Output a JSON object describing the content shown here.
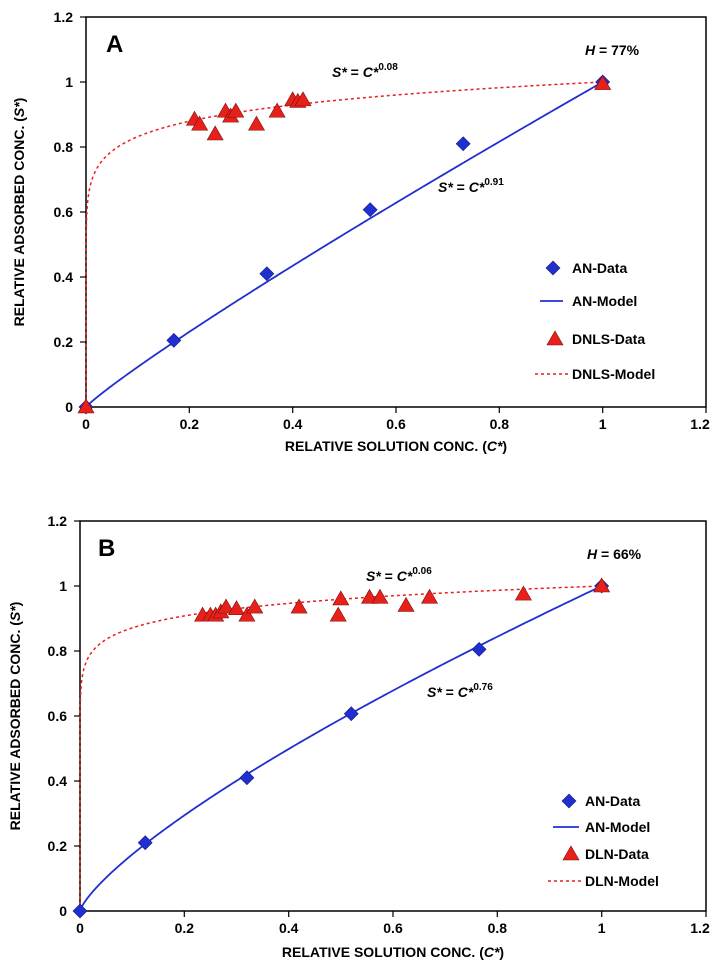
{
  "chart_data": [
    {
      "type": "scatter",
      "panel_label": "A",
      "humidity_label": "H",
      "humidity_value": " = 77%",
      "xlabel": "RELATIVE SOLUTION CONC. (",
      "xlabel_var": "C*",
      "xlabel_end": ")",
      "ylabel": "RELATIVE ADSORBED CONC. (",
      "ylabel_var": "S*",
      "ylabel_end": ")",
      "xlim": [
        0,
        1.2
      ],
      "ylim": [
        0,
        1.2
      ],
      "xticks": [
        "0",
        "0.2",
        "0.4",
        "0.6",
        "0.8",
        "1",
        "1.2"
      ],
      "yticks": [
        "0",
        "0.2",
        "0.4",
        "0.6",
        "0.8",
        "1",
        "1.2"
      ],
      "grid": false,
      "legend_position": "right",
      "equations": [
        {
          "lhs": "S*",
          "mid": " = ",
          "base": "C*",
          "exp": "0.08"
        },
        {
          "lhs": "S*",
          "mid": " = ",
          "base": "C*",
          "exp": "0.91"
        }
      ],
      "series": [
        {
          "name": "AN-Data",
          "kind": "points",
          "marker": "diamond",
          "color": "#1f2fd0",
          "x": [
            0,
            0.17,
            0.35,
            0.55,
            0.73,
            1.0
          ],
          "y": [
            0,
            0.205,
            0.41,
            0.607,
            0.81,
            1.0
          ]
        },
        {
          "name": "AN-Model",
          "kind": "line",
          "style": "solid",
          "color": "#1f2fd0",
          "exponent": 0.91
        },
        {
          "name": "DNLS-Data",
          "kind": "points",
          "marker": "triangle",
          "color": "#e8201a",
          "x": [
            0,
            0.21,
            0.22,
            0.25,
            0.27,
            0.28,
            0.29,
            0.33,
            0.37,
            0.4,
            0.41,
            0.42,
            1.0
          ],
          "y": [
            0,
            0.885,
            0.87,
            0.84,
            0.91,
            0.895,
            0.91,
            0.87,
            0.91,
            0.945,
            0.94,
            0.945,
            0.995
          ]
        },
        {
          "name": "DNLS-Model",
          "kind": "line",
          "style": "dashed",
          "color": "#e8201a",
          "exponent": 0.08
        }
      ]
    },
    {
      "type": "scatter",
      "panel_label": "B",
      "humidity_label": "H",
      "humidity_value": " = 66%",
      "xlabel": "RELATIVE SOLUTION CONC. (",
      "xlabel_var": "C*",
      "xlabel_end": ")",
      "ylabel": "RELATIVE ADSORBED CONC. (",
      "ylabel_var": "S*",
      "ylabel_end": ")",
      "xlim": [
        0,
        1.2
      ],
      "ylim": [
        0,
        1.2
      ],
      "xticks": [
        "0",
        "0.2",
        "0.4",
        "0.6",
        "0.8",
        "1",
        "1.2"
      ],
      "yticks": [
        "0",
        "0.2",
        "0.4",
        "0.6",
        "0.8",
        "1",
        "1.2"
      ],
      "grid": false,
      "legend_position": "bottom-right",
      "equations": [
        {
          "lhs": "S*",
          "mid": " = ",
          "base": "C*",
          "exp": "0.06"
        },
        {
          "lhs": "S*",
          "mid": " = ",
          "base": "C*",
          "exp": "0.76"
        }
      ],
      "series": [
        {
          "name": "AN-Data",
          "kind": "points",
          "marker": "diamond",
          "color": "#1f2fd0",
          "x": [
            0,
            0.125,
            0.32,
            0.52,
            0.765,
            1.0
          ],
          "y": [
            0,
            0.21,
            0.41,
            0.607,
            0.805,
            1.0
          ]
        },
        {
          "name": "AN-Model",
          "kind": "line",
          "style": "solid",
          "color": "#1f2fd0",
          "exponent": 0.76
        },
        {
          "name": "DLN-Data",
          "kind": "points",
          "marker": "triangle",
          "color": "#e8201a",
          "x": [
            0.235,
            0.25,
            0.26,
            0.27,
            0.28,
            0.3,
            0.32,
            0.335,
            0.42,
            0.495,
            0.5,
            0.555,
            0.575,
            0.625,
            0.67,
            0.85,
            1.0
          ],
          "y": [
            0.91,
            0.91,
            0.91,
            0.92,
            0.935,
            0.93,
            0.91,
            0.935,
            0.935,
            0.91,
            0.96,
            0.965,
            0.965,
            0.94,
            0.965,
            0.975,
            1.0
          ]
        },
        {
          "name": "DLN-Model",
          "kind": "line",
          "style": "dashed",
          "color": "#e8201a",
          "exponent": 0.06
        }
      ]
    }
  ]
}
